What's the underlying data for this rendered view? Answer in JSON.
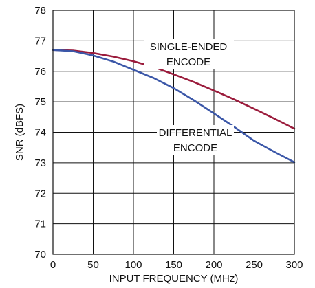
{
  "chart_data": {
    "type": "line",
    "title": "",
    "xlabel": "INPUT FREQUENCY (MHz)",
    "ylabel": "SNR (dBFS)",
    "xlim": [
      0,
      300
    ],
    "ylim": [
      70,
      78
    ],
    "xticks": [
      0,
      50,
      100,
      150,
      200,
      250,
      300
    ],
    "yticks": [
      70,
      71,
      72,
      73,
      74,
      75,
      76,
      77,
      78
    ],
    "grid": true,
    "legend": "none",
    "series": [
      {
        "name": "SINGLE-ENDED ENCODE",
        "color": "#9b1c3c",
        "x": [
          0,
          25,
          50,
          75,
          100,
          125,
          150,
          175,
          200,
          225,
          250,
          275,
          300
        ],
        "y": [
          76.7,
          76.68,
          76.6,
          76.48,
          76.33,
          76.14,
          75.9,
          75.65,
          75.37,
          75.08,
          74.77,
          74.45,
          74.12
        ]
      },
      {
        "name": "DIFFERENTIAL ENCODE",
        "color": "#3b57a8",
        "x": [
          0,
          25,
          50,
          75,
          100,
          125,
          150,
          175,
          200,
          225,
          250,
          275,
          300
        ],
        "y": [
          76.7,
          76.66,
          76.52,
          76.32,
          76.05,
          75.78,
          75.45,
          75.05,
          74.62,
          74.18,
          73.72,
          73.36,
          73.02
        ]
      }
    ],
    "annotations": [
      {
        "lines": [
          "SINGLE-ENDED",
          "ENCODE"
        ],
        "series": 0
      },
      {
        "lines": [
          "DIFFERENTIAL",
          "ENCODE"
        ],
        "series": 1
      }
    ]
  }
}
